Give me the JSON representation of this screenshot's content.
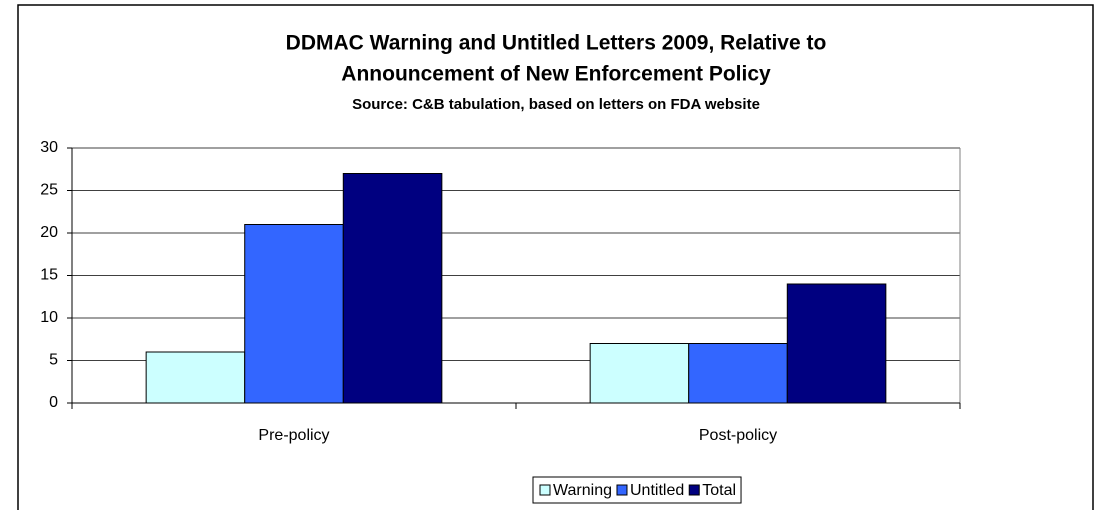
{
  "chart_data": {
    "type": "bar",
    "title": [
      "DDMAC Warning and Untitled Letters 2009, Relative to",
      "Announcement of New Enforcement Policy"
    ],
    "subtitle": "Source: C&B tabulation, based on letters on FDA website",
    "categories": [
      "Pre-policy",
      "Post-policy"
    ],
    "series": [
      {
        "name": "Warning",
        "color": "#ccffff",
        "values": [
          6,
          7
        ]
      },
      {
        "name": "Untitled",
        "color": "#3366ff",
        "values": [
          21,
          7
        ]
      },
      {
        "name": "Total",
        "color": "#000080",
        "values": [
          27,
          14
        ]
      }
    ],
    "ylim": [
      0,
      30
    ],
    "yticks": [
      0,
      5,
      10,
      15,
      20,
      25,
      30
    ],
    "grid": true,
    "legend": "bottom"
  }
}
